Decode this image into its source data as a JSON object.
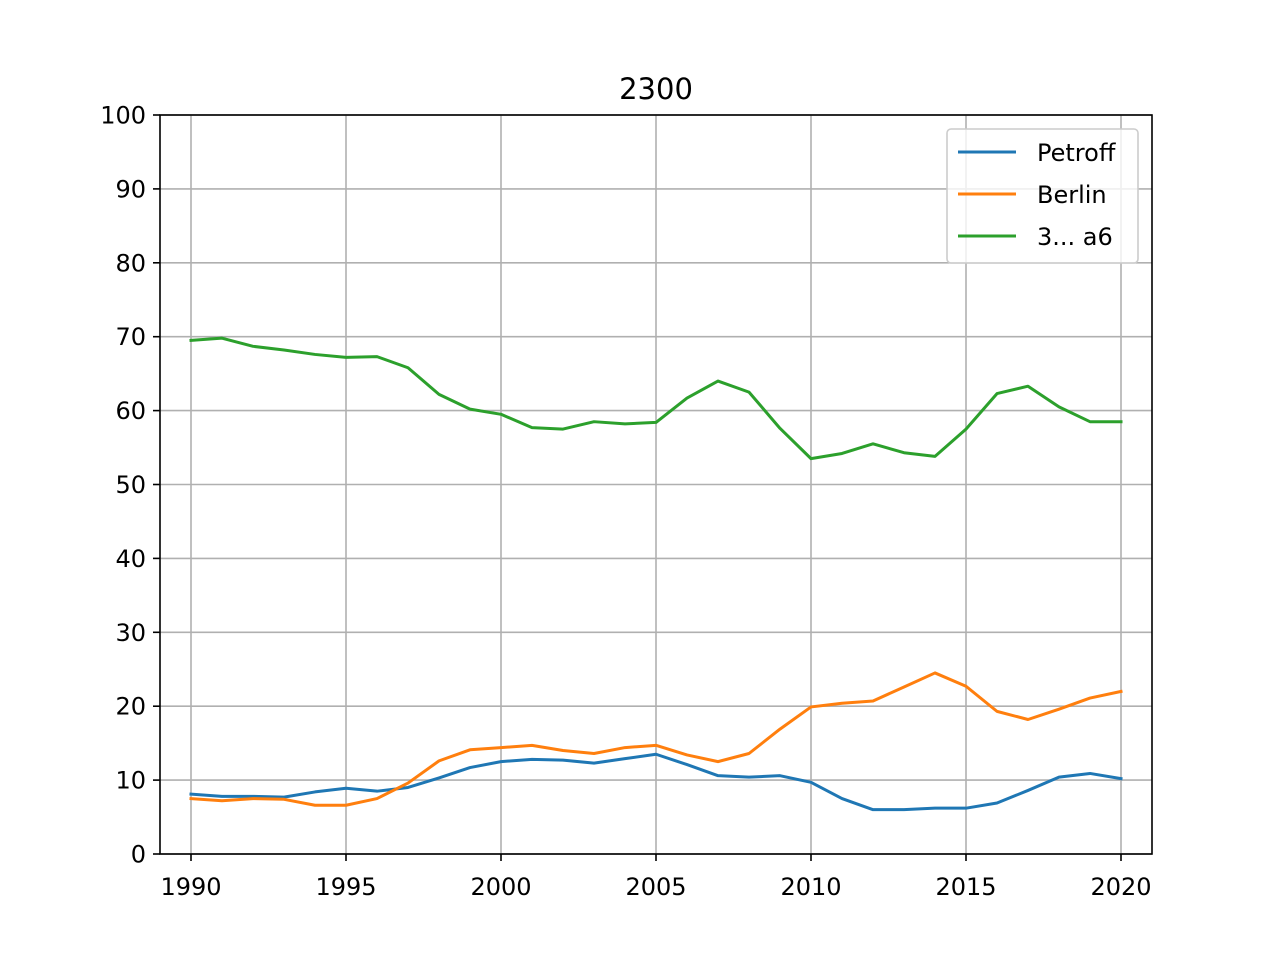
{
  "chart_data": {
    "type": "line",
    "title": "2300",
    "xlabel": "",
    "ylabel": "",
    "xlim": [
      1989,
      2021
    ],
    "ylim": [
      0,
      100
    ],
    "x_ticks": [
      "1990",
      "1995",
      "2000",
      "2005",
      "2010",
      "2015",
      "2020"
    ],
    "y_ticks": [
      "0",
      "10",
      "20",
      "30",
      "40",
      "50",
      "60",
      "70",
      "80",
      "90",
      "100"
    ],
    "grid": true,
    "legend_position": "top-right",
    "x": [
      1990,
      1991,
      1992,
      1993,
      1994,
      1995,
      1996,
      1997,
      1998,
      1999,
      2000,
      2001,
      2002,
      2003,
      2004,
      2005,
      2006,
      2007,
      2008,
      2009,
      2010,
      2011,
      2012,
      2013,
      2014,
      2015,
      2016,
      2017,
      2018,
      2019,
      2020
    ],
    "series": [
      {
        "name": "Petroff",
        "color": "#1f77b4",
        "values": [
          8.1,
          7.8,
          7.8,
          7.7,
          8.4,
          8.9,
          8.5,
          9.0,
          10.3,
          11.7,
          12.5,
          12.8,
          12.7,
          12.3,
          12.9,
          13.5,
          12.1,
          10.6,
          10.4,
          10.6,
          9.7,
          7.5,
          6.0,
          6.0,
          6.2,
          6.2,
          6.9,
          8.6,
          10.4,
          10.9,
          10.2
        ]
      },
      {
        "name": "Berlin",
        "color": "#ff7f0e",
        "values": [
          7.5,
          7.2,
          7.5,
          7.4,
          6.6,
          6.6,
          7.5,
          9.6,
          12.6,
          14.1,
          14.4,
          14.7,
          14.0,
          13.6,
          14.4,
          14.7,
          13.4,
          12.5,
          13.6,
          16.9,
          19.9,
          20.4,
          20.7,
          22.6,
          24.5,
          22.7,
          19.3,
          18.2,
          19.6,
          21.1,
          22.0
        ]
      },
      {
        "name": "3... a6",
        "color": "#2ca02c",
        "values": [
          69.5,
          69.8,
          68.7,
          68.2,
          67.6,
          67.2,
          67.3,
          65.8,
          62.2,
          60.2,
          59.5,
          57.7,
          57.5,
          58.5,
          58.2,
          58.4,
          61.7,
          64.0,
          62.5,
          57.6,
          53.5,
          54.2,
          55.5,
          54.3,
          53.8,
          57.5,
          62.3,
          63.3,
          60.5,
          58.5,
          58.5
        ]
      }
    ]
  }
}
